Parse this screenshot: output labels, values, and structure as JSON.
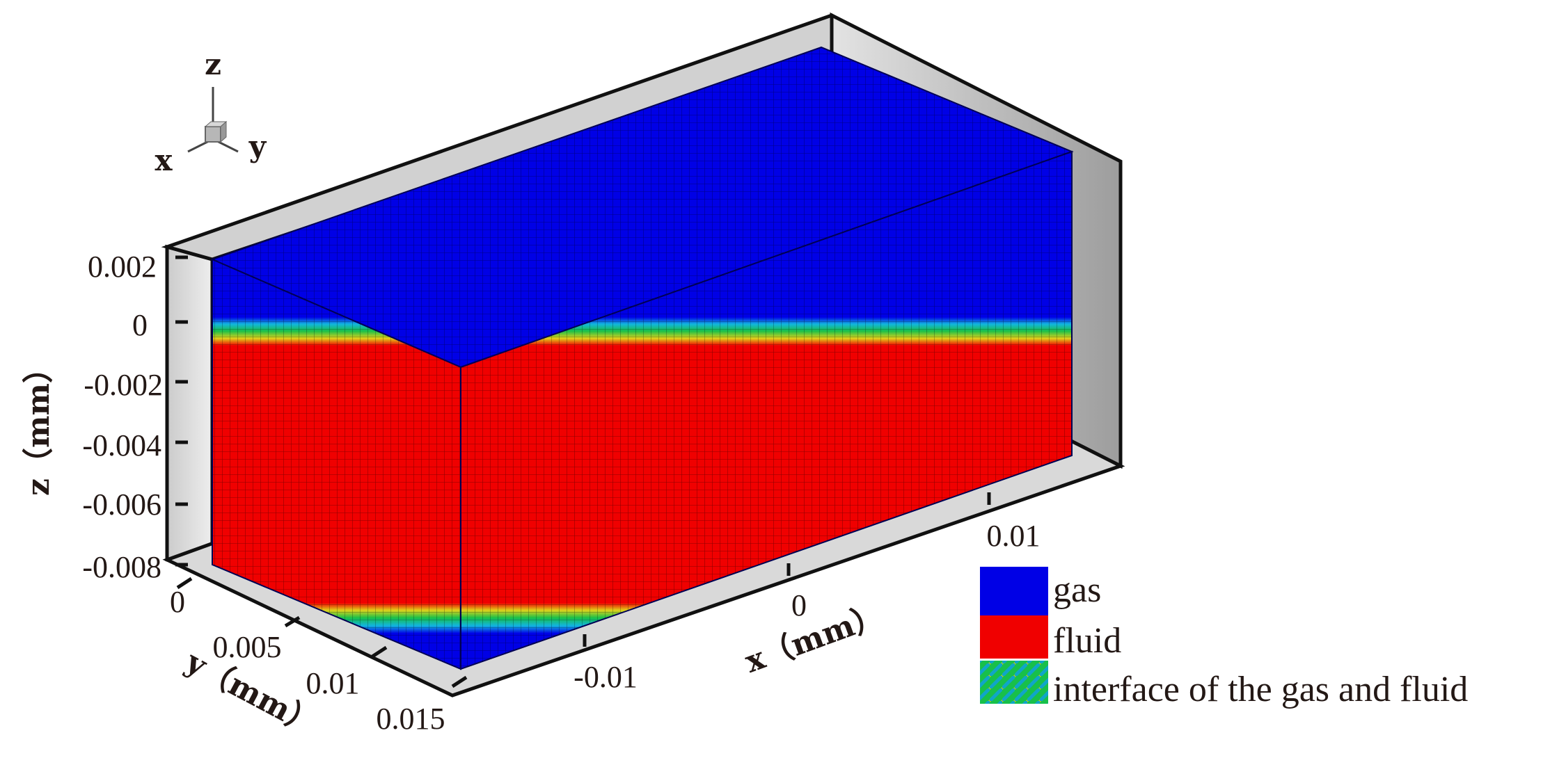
{
  "axes": {
    "z_title": "z（mm）",
    "y_title": "y（mm）",
    "x_title": "x（mm）",
    "z_ticks": [
      "0.002",
      "0",
      "-0.002",
      "-0.004",
      "-0.006",
      "-0.008"
    ],
    "y_ticks": [
      "0",
      "0.005",
      "0.01",
      "0.015"
    ],
    "x_ticks": [
      "-0.01",
      "0",
      "0.01"
    ]
  },
  "orientation_triad": {
    "z_label": "z",
    "x_label": "x",
    "y_label": "y"
  },
  "legend": {
    "gas": "gas",
    "fluid": "fluid",
    "interface": "interface of the gas and fluid"
  },
  "colors": {
    "gas": "#0000e6",
    "fluid": "#f00000",
    "interface_green": "#18c04a",
    "interface_cyan": "#11a7c9",
    "interface_yellow": "#e2cc17",
    "grid_line": "#000000",
    "back_wall": "#d4d4d4",
    "back_wall_dark": "#9f9f9f"
  }
}
